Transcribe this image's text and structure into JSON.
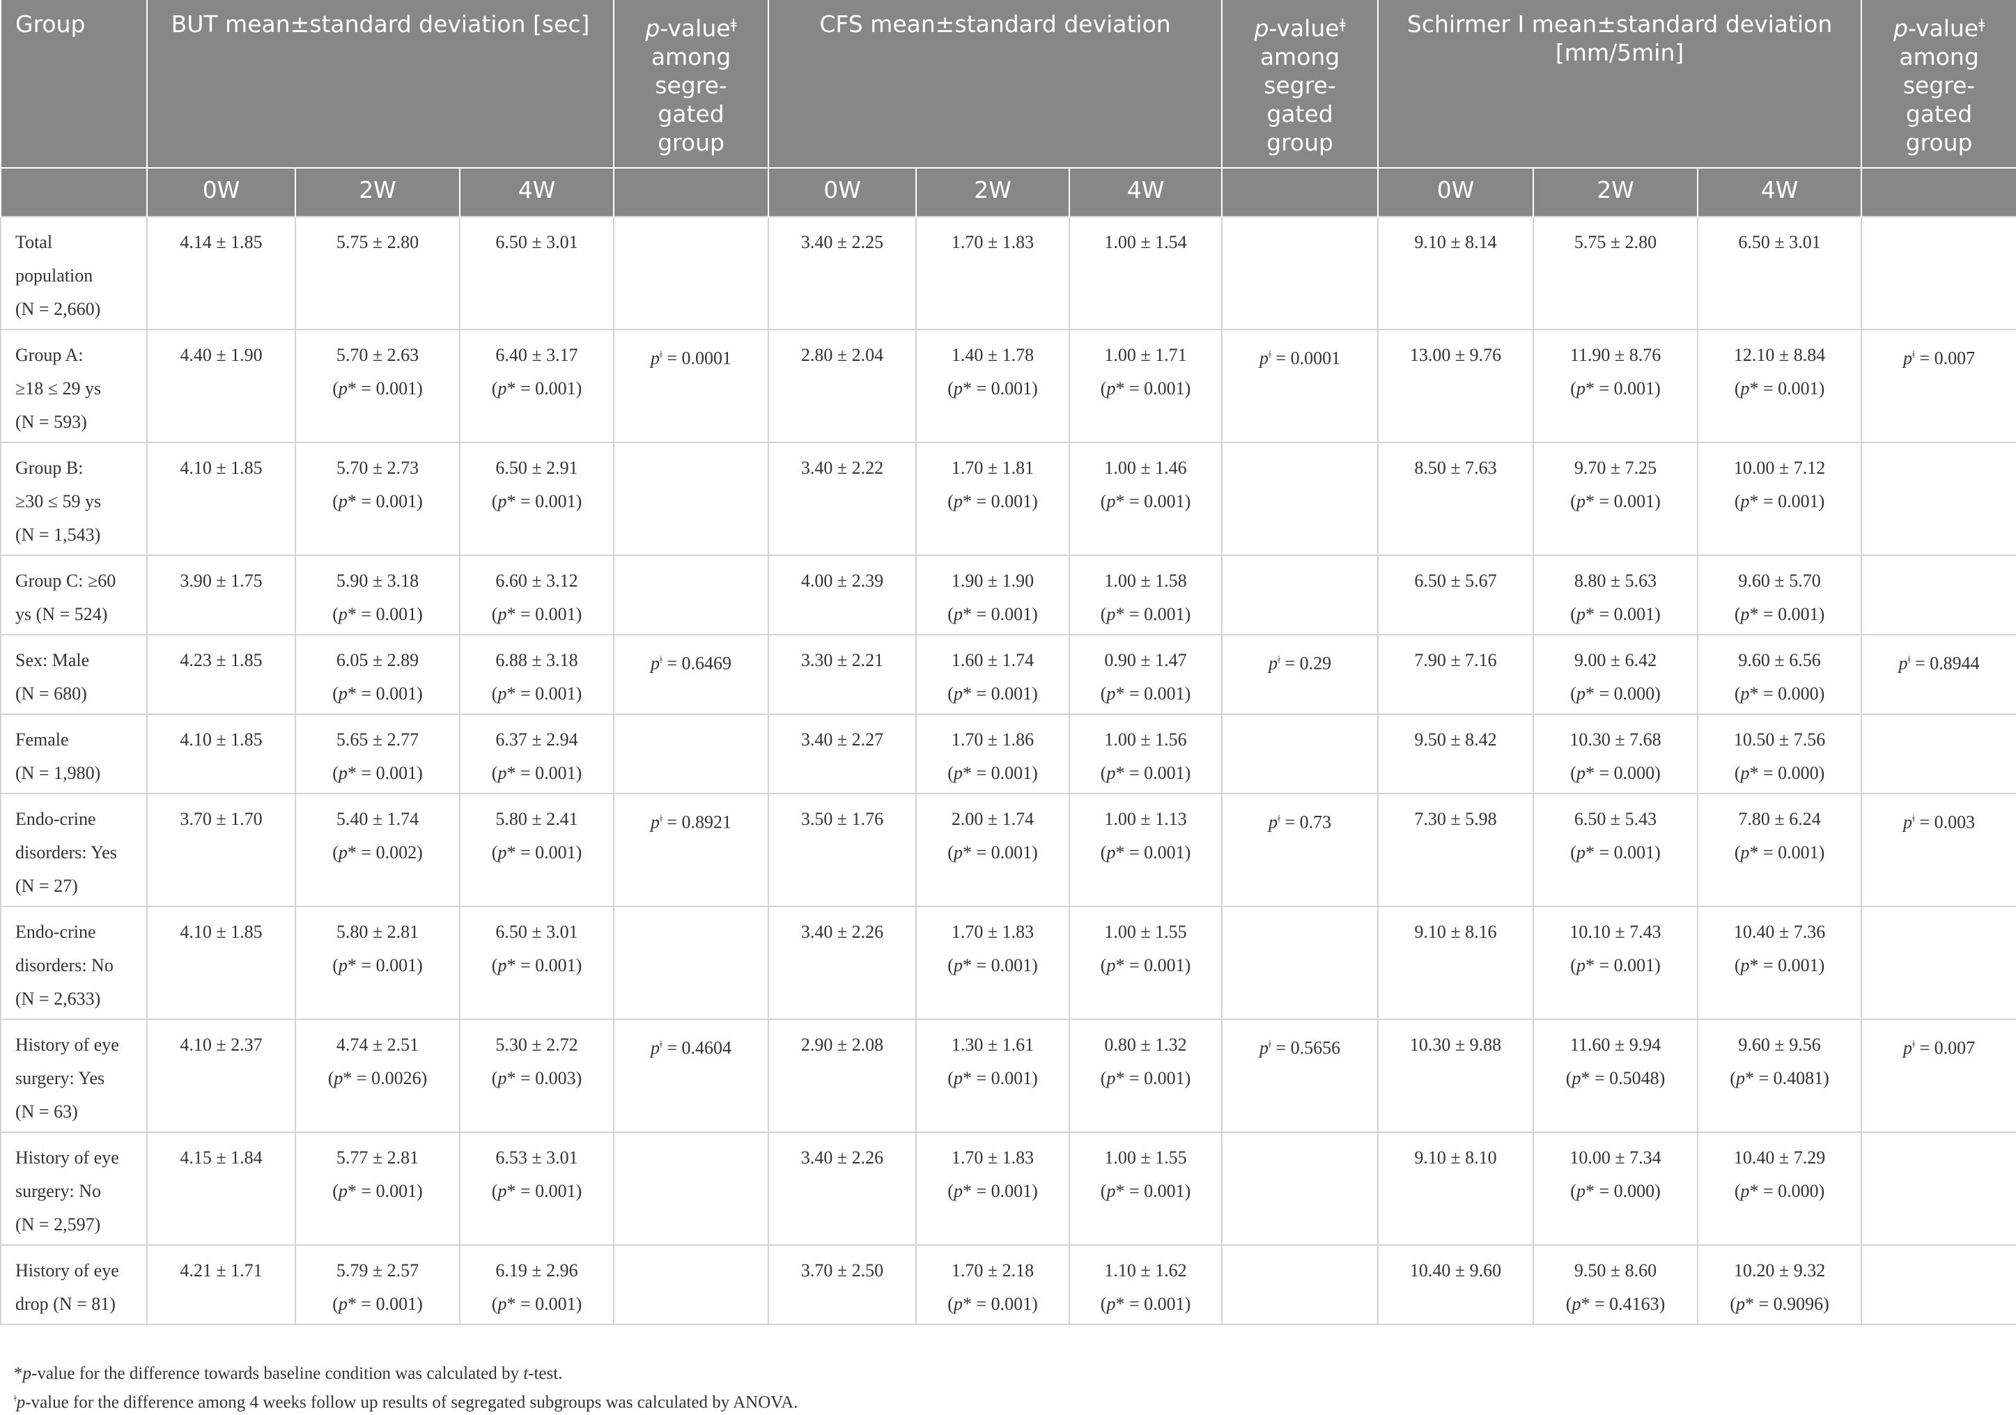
{
  "table": {
    "header": [
      "Group",
      [
        "BUT mean±standard deviation [sec]"
      ],
      [
        "p-valueǂ",
        "among",
        "segre-",
        "gated",
        "group"
      ],
      [
        "CFS mean±standard deviation"
      ],
      [
        "p-valueǂ",
        "among",
        "segre-",
        "gated",
        "group"
      ],
      [
        "Schirmer I mean±standard deviation",
        "[mm/5min]"
      ],
      [
        "p-valueǂ",
        "among",
        "segre-",
        "gated",
        "group"
      ]
    ],
    "subheader": [
      "0W",
      "2W",
      "4W",
      "0W",
      "2W",
      "4W",
      "0W",
      "2W",
      "4W"
    ],
    "rows": [
      {
        "group": [
          "Total",
          "population",
          "(N = 2,660)"
        ],
        "cells": [
          [
            "4.14 ± 1.85"
          ],
          [
            "5.75 ± 2.80"
          ],
          [
            "6.50 ± 3.01"
          ],
          [],
          [
            "3.40 ± 2.25"
          ],
          [
            "1.70 ± 1.83"
          ],
          [
            "1.00 ± 1.54"
          ],
          [],
          [
            "9.10 ± 8.14"
          ],
          [
            "5.75 ± 2.80"
          ],
          [
            "6.50 ± 3.01"
          ],
          []
        ]
      },
      {
        "group": [
          "Group A:",
          "≥18 ≤ 29 ys",
          "(N = 593)"
        ],
        "cells": [
          [
            "4.40 ± 1.90"
          ],
          [
            "5.70 ± 2.63",
            "(p* = 0.001)"
          ],
          [
            "6.40 ± 3.17",
            "(p* = 0.001)"
          ],
          [
            "pǂ = 0.0001"
          ],
          [
            "2.80 ± 2.04"
          ],
          [
            "1.40 ± 1.78",
            "(p* = 0.001)"
          ],
          [
            "1.00 ± 1.71",
            "(p* = 0.001)"
          ],
          [
            "pǂ = 0.0001"
          ],
          [
            "13.00 ± 9.76"
          ],
          [
            "11.90 ± 8.76",
            "(p* = 0.001)"
          ],
          [
            "12.10 ± 8.84",
            "(p* = 0.001)"
          ],
          [
            "pǂ = 0.007"
          ]
        ]
      },
      {
        "group": [
          "Group B:",
          "≥30 ≤ 59 ys",
          "(N = 1,543)"
        ],
        "cells": [
          [
            "4.10 ± 1.85"
          ],
          [
            "5.70 ± 2.73",
            "(p* = 0.001)"
          ],
          [
            "6.50 ± 2.91",
            "(p* = 0.001)"
          ],
          [],
          [
            "3.40 ± 2.22"
          ],
          [
            "1.70 ± 1.81",
            "(p* = 0.001)"
          ],
          [
            "1.00 ± 1.46",
            "(p* = 0.001)"
          ],
          [],
          [
            "8.50 ± 7.63"
          ],
          [
            "9.70 ± 7.25",
            "(p* = 0.001)"
          ],
          [
            "10.00 ± 7.12",
            "(p* = 0.001)"
          ],
          []
        ]
      },
      {
        "group": [
          "Group C: ≥60",
          "ys (N = 524)"
        ],
        "cells": [
          [
            "3.90 ± 1.75"
          ],
          [
            "5.90 ± 3.18",
            "(p* = 0.001)"
          ],
          [
            "6.60 ± 3.12",
            "(p* = 0.001)"
          ],
          [],
          [
            "4.00 ± 2.39"
          ],
          [
            "1.90 ± 1.90",
            "(p* = 0.001)"
          ],
          [
            "1.00 ± 1.58",
            "(p* = 0.001)"
          ],
          [],
          [
            "6.50 ± 5.67"
          ],
          [
            "8.80 ± 5.63",
            "(p* = 0.001)"
          ],
          [
            "9.60 ± 5.70",
            "(p* = 0.001)"
          ],
          []
        ]
      },
      {
        "group": [
          "Sex: Male",
          "(N = 680)"
        ],
        "cells": [
          [
            "4.23 ± 1.85"
          ],
          [
            "6.05 ± 2.89",
            "(p* = 0.001)"
          ],
          [
            "6.88 ± 3.18",
            "(p* = 0.001)"
          ],
          [
            "pǂ = 0.6469"
          ],
          [
            "3.30 ± 2.21"
          ],
          [
            "1.60 ± 1.74",
            "(p* = 0.001)"
          ],
          [
            "0.90 ± 1.47",
            "(p* = 0.001)"
          ],
          [
            "pǂ = 0.29"
          ],
          [
            "7.90 ± 7.16"
          ],
          [
            "9.00 ± 6.42",
            "(p* = 0.000)"
          ],
          [
            "9.60 ± 6.56",
            "(p* = 0.000)"
          ],
          [
            "pǂ = 0.8944"
          ]
        ]
      },
      {
        "group": [
          "Female",
          "(N = 1,980)"
        ],
        "cells": [
          [
            "4.10 ± 1.85"
          ],
          [
            "5.65 ± 2.77",
            "(p* = 0.001)"
          ],
          [
            "6.37 ± 2.94",
            "(p* = 0.001)"
          ],
          [],
          [
            "3.40 ± 2.27"
          ],
          [
            "1.70 ± 1.86",
            "(p* = 0.001)"
          ],
          [
            "1.00 ± 1.56",
            "(p* = 0.001)"
          ],
          [],
          [
            "9.50 ± 8.42"
          ],
          [
            "10.30 ± 7.68",
            "(p* = 0.000)"
          ],
          [
            "10.50 ± 7.56",
            "(p* = 0.000)"
          ],
          []
        ]
      },
      {
        "group": [
          "Endo-crine",
          "disorders: Yes",
          "(N = 27)"
        ],
        "cells": [
          [
            "3.70 ± 1.70"
          ],
          [
            "5.40 ± 1.74",
            "(p* = 0.002)"
          ],
          [
            "5.80 ± 2.41",
            "(p* = 0.001)"
          ],
          [
            "pǂ = 0.8921"
          ],
          [
            "3.50 ± 1.76"
          ],
          [
            "2.00 ± 1.74",
            "(p* = 0.001)"
          ],
          [
            "1.00 ± 1.13",
            "(p* = 0.001)"
          ],
          [
            "pǂ = 0.73"
          ],
          [
            "7.30 ± 5.98"
          ],
          [
            "6.50 ± 5.43",
            "(p* = 0.001)"
          ],
          [
            "7.80 ± 6.24",
            "(p* = 0.001)"
          ],
          [
            "pǂ = 0.003"
          ]
        ]
      },
      {
        "group": [
          "Endo-crine",
          "disorders: No",
          "(N = 2,633)"
        ],
        "cells": [
          [
            "4.10 ± 1.85"
          ],
          [
            "5.80 ± 2.81",
            "(p* = 0.001)"
          ],
          [
            "6.50 ± 3.01",
            "(p* = 0.001)"
          ],
          [],
          [
            "3.40 ± 2.26"
          ],
          [
            "1.70 ± 1.83",
            "(p* = 0.001)"
          ],
          [
            "1.00 ± 1.55",
            "(p* = 0.001)"
          ],
          [],
          [
            "9.10 ± 8.16"
          ],
          [
            "10.10 ± 7.43",
            "(p* = 0.001)"
          ],
          [
            "10.40 ± 7.36",
            "(p* = 0.001)"
          ],
          []
        ]
      },
      {
        "group": [
          "History of eye",
          "surgery: Yes",
          "(N = 63)"
        ],
        "cells": [
          [
            "4.10 ± 2.37"
          ],
          [
            "4.74 ± 2.51",
            "(p* = 0.0026)"
          ],
          [
            "5.30 ± 2.72",
            "(p* = 0.003)"
          ],
          [
            "pǂ = 0.4604"
          ],
          [
            "2.90 ± 2.08"
          ],
          [
            "1.30 ± 1.61",
            "(p* = 0.001)"
          ],
          [
            "0.80 ± 1.32",
            "(p* = 0.001)"
          ],
          [
            "pǂ = 0.5656"
          ],
          [
            "10.30 ± 9.88"
          ],
          [
            "11.60 ± 9.94",
            "(p* = 0.5048)"
          ],
          [
            "9.60 ± 9.56",
            "(p* = 0.4081)"
          ],
          [
            "pǂ = 0.007"
          ]
        ]
      },
      {
        "group": [
          "History of eye",
          "surgery: No",
          "(N = 2,597)"
        ],
        "cells": [
          [
            "4.15 ± 1.84"
          ],
          [
            "5.77 ± 2.81",
            "(p* = 0.001)"
          ],
          [
            "6.53 ± 3.01",
            "(p* = 0.001)"
          ],
          [],
          [
            "3.40 ± 2.26"
          ],
          [
            "1.70 ± 1.83",
            "(p* = 0.001)"
          ],
          [
            "1.00 ± 1.55",
            "(p* = 0.001)"
          ],
          [],
          [
            "9.10 ± 8.10"
          ],
          [
            "10.00 ± 7.34",
            "(p* = 0.000)"
          ],
          [
            "10.40 ± 7.29",
            "(p* = 0.000)"
          ],
          []
        ]
      },
      {
        "group": [
          "History of eye",
          "drop (N = 81)"
        ],
        "cells": [
          [
            "4.21 ± 1.71"
          ],
          [
            "5.79 ± 2.57",
            "(p* = 0.001)"
          ],
          [
            "6.19 ± 2.96",
            "(p* = 0.001)"
          ],
          [],
          [
            "3.70 ± 2.50"
          ],
          [
            "1.70 ± 2.18",
            "(p* = 0.001)"
          ],
          [
            "1.10 ± 1.62",
            "(p* = 0.001)"
          ],
          [],
          [
            "10.40 ± 9.60"
          ],
          [
            "9.50 ± 8.60",
            "(p* = 0.4163)"
          ],
          [
            "10.20 ± 9.32",
            "(p* = 0.9096)"
          ],
          []
        ]
      }
    ]
  },
  "footnotes": [
    "*p-value for the difference towards baseline condition was calculated by t-test.",
    "ǂp-value for the difference among 4 weeks follow up results of segregated subgroups was calculated by ANOVA."
  ]
}
